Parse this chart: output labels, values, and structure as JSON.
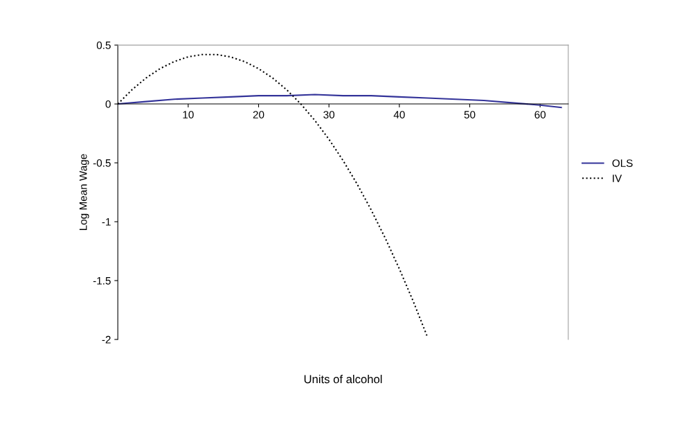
{
  "chart_data": {
    "type": "line",
    "xlabel": "Units of alcohol",
    "ylabel": "Log Mean Wage",
    "xlim": [
      0,
      64
    ],
    "xticks": [
      10,
      20,
      30,
      40,
      50,
      60
    ],
    "ylim": [
      -2,
      0.5
    ],
    "yticks": [
      {
        "value": 0.5,
        "label": "0.5"
      },
      0,
      {
        "value": -0.5,
        "label": "-0.5"
      },
      {
        "value": -1,
        "label": "-1"
      },
      {
        "value": -1.5,
        "label": "-1.5"
      },
      {
        "value": -2,
        "label": "-2"
      }
    ],
    "grid": false,
    "legend": "right",
    "series": [
      {
        "name": "OLS",
        "color": "#333399",
        "line_style": "solid",
        "x": [
          0,
          4,
          8,
          12,
          16,
          20,
          24,
          28,
          32,
          36,
          40,
          44,
          48,
          52,
          56,
          60,
          63
        ],
        "values": [
          0,
          0.02,
          0.04,
          0.05,
          0.06,
          0.07,
          0.07,
          0.08,
          0.07,
          0.07,
          0.06,
          0.05,
          0.04,
          0.03,
          0.01,
          -0.01,
          -0.03
        ]
      },
      {
        "name": "IV",
        "color": "#000000",
        "line_style": "dotted",
        "x": [
          0,
          2,
          4,
          6,
          8,
          10,
          12,
          14,
          16,
          18,
          20,
          22,
          24,
          26,
          28,
          30,
          32,
          34,
          36,
          38,
          40,
          42,
          44
        ],
        "values": [
          0,
          0.12,
          0.22,
          0.3,
          0.36,
          0.4,
          0.42,
          0.42,
          0.4,
          0.36,
          0.3,
          0.22,
          0.12,
          0,
          -0.14,
          -0.3,
          -0.48,
          -0.68,
          -0.9,
          -1.14,
          -1.4,
          -1.68,
          -1.98
        ]
      }
    ]
  }
}
